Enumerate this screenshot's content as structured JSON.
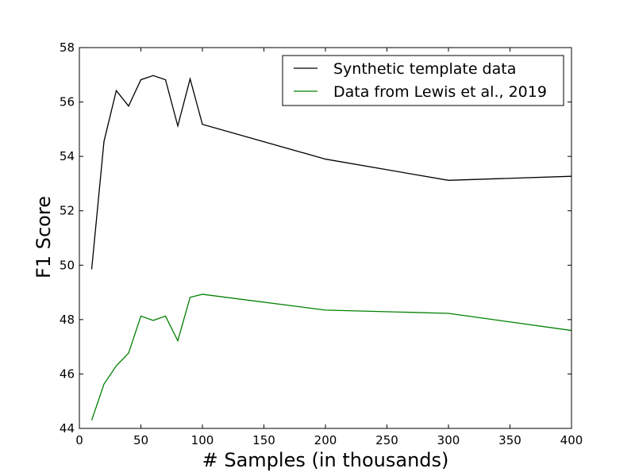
{
  "chart_data": {
    "type": "line",
    "title": "",
    "xlabel": "# Samples (in thousands)",
    "ylabel": "F1 Score",
    "xlim": [
      0,
      400
    ],
    "ylim": [
      44,
      58
    ],
    "xticks": [
      0,
      50,
      100,
      150,
      200,
      250,
      300,
      350,
      400
    ],
    "yticks": [
      44,
      46,
      48,
      50,
      52,
      54,
      56,
      58
    ],
    "grid": false,
    "legend_position": "top-right",
    "series": [
      {
        "name": "Synthetic template data",
        "color": "#000000",
        "x": [
          10,
          20,
          30,
          40,
          50,
          60,
          70,
          80,
          90,
          100,
          200,
          300,
          400
        ],
        "y": [
          49.85,
          54.55,
          56.42,
          55.85,
          56.82,
          56.97,
          56.82,
          55.12,
          56.85,
          55.18,
          53.9,
          53.12,
          53.27
        ]
      },
      {
        "name": "Data from Lewis et al., 2019",
        "color": "#008000",
        "x": [
          10,
          20,
          30,
          40,
          50,
          60,
          70,
          80,
          90,
          100,
          200,
          300,
          400
        ],
        "y": [
          44.3,
          45.63,
          46.3,
          46.77,
          48.13,
          47.97,
          48.13,
          47.22,
          48.82,
          48.93,
          48.35,
          48.23,
          47.6
        ]
      }
    ]
  }
}
